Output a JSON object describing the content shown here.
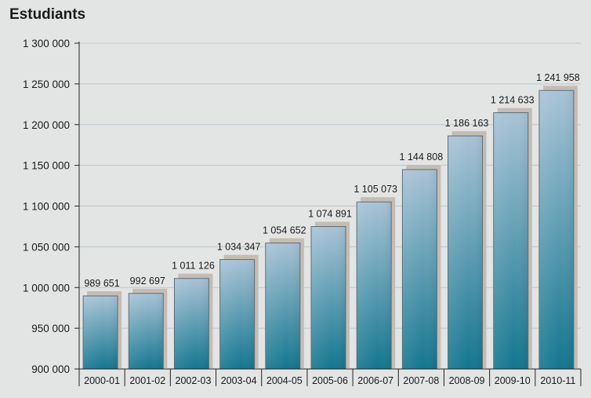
{
  "chart_data": {
    "type": "bar",
    "title": "Estudiants",
    "xlabel": "",
    "ylabel": "",
    "categories": [
      "2000-01",
      "2001-02",
      "2002-03",
      "2003-04",
      "2004-05",
      "2005-06",
      "2006-07",
      "2007-08",
      "2008-09",
      "2009-10",
      "2010-11"
    ],
    "values": [
      989651,
      992697,
      1011126,
      1034347,
      1054652,
      1074891,
      1105073,
      1144808,
      1186163,
      1214633,
      1241958
    ],
    "value_labels": [
      "989 651",
      "992 697",
      "1 011 126",
      "1 034 347",
      "1 054 652",
      "1 074 891",
      "1 105 073",
      "1 144 808",
      "1 186 163",
      "1 214 633",
      "1 241 958"
    ],
    "ylim": [
      900000,
      1300000
    ],
    "yticks": [
      900000,
      950000,
      1000000,
      1050000,
      1100000,
      1150000,
      1200000,
      1250000,
      1300000
    ],
    "ytick_labels": [
      "900 000",
      "950 000",
      "1 000 000",
      "1 050 000",
      "1 100 000",
      "1 150 000",
      "1 200 000",
      "1 250 000",
      "1 300 000"
    ],
    "grid": true,
    "legend": "none",
    "colors": {
      "bar_top": "#a9c3d6",
      "bar_bottom": "#13768f",
      "bar_border": "#5a6e7a",
      "shadow": "#c5bcb3",
      "gridline": "#b9c7c9",
      "axis": "#222222",
      "background": "#e3e4e4"
    }
  }
}
